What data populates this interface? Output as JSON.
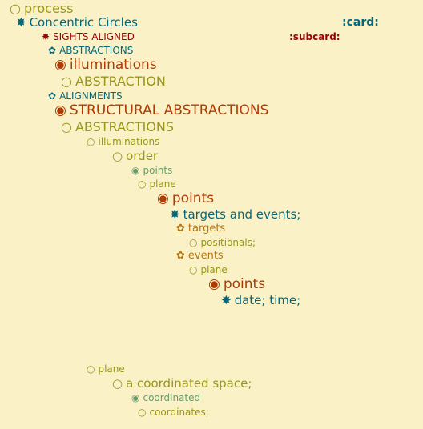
{
  "colors": {
    "background": "#fbf1c7",
    "olive": "#98971a",
    "teal": "#076678",
    "red": "#9d0006",
    "rust": "#af3a03",
    "gold": "#b57614",
    "green": "#689d6a"
  },
  "tags": {
    "card": ":card:",
    "subcard": ":subcard:"
  },
  "outline": [
    {
      "bullet": "○",
      "text": "process",
      "icon": "circle-outline-icon"
    },
    {
      "bullet": "✸",
      "text": "Concentric Circles",
      "icon": "star-burst-icon"
    },
    {
      "bullet": "✸",
      "text": "SIGHTS ALIGNED",
      "icon": "star-burst-icon"
    },
    {
      "bullet": "✿",
      "text": "ABSTRACTIONS",
      "icon": "flower-icon"
    },
    {
      "bullet": "◉",
      "text": "illuminations",
      "icon": "circle-filled-icon"
    },
    {
      "bullet": "○",
      "text": "ABSTRACTION",
      "icon": "circle-outline-icon"
    },
    {
      "bullet": "✿",
      "text": "ALIGNMENTS",
      "icon": "flower-icon"
    },
    {
      "bullet": "◉",
      "text": "STRUCTURAL ABSTRACTIONS",
      "icon": "circle-filled-icon"
    },
    {
      "bullet": "○",
      "text": "ABSTRACTIONS",
      "icon": "circle-outline-icon"
    },
    {
      "bullet": "○",
      "text": "illuminations",
      "icon": "circle-outline-icon"
    },
    {
      "bullet": "○",
      "text": "order",
      "icon": "circle-outline-icon"
    },
    {
      "bullet": "◉",
      "text": "points",
      "icon": "circle-filled-icon"
    },
    {
      "bullet": "○",
      "text": "plane",
      "icon": "circle-outline-icon"
    },
    {
      "bullet": "◉",
      "text": "points",
      "icon": "circle-filled-icon"
    },
    {
      "bullet": "✸",
      "text": "targets and events;",
      "icon": "star-burst-icon"
    },
    {
      "bullet": "✿",
      "text": "targets",
      "icon": "flower-icon"
    },
    {
      "bullet": "○",
      "text": "positionals;",
      "icon": "circle-outline-icon"
    },
    {
      "bullet": "✿",
      "text": "events",
      "icon": "flower-icon"
    },
    {
      "bullet": "○",
      "text": "plane",
      "icon": "circle-outline-icon"
    },
    {
      "bullet": "◉",
      "text": "points",
      "icon": "circle-filled-icon"
    },
    {
      "bullet": "✸",
      "text": "date; time;",
      "icon": "star-burst-icon"
    },
    {
      "bullet": "○",
      "text": "plane",
      "icon": "circle-outline-icon"
    },
    {
      "bullet": "○",
      "text": "a coordinated space;",
      "icon": "circle-outline-icon"
    },
    {
      "bullet": "◉",
      "text": "coordinated",
      "icon": "circle-filled-icon"
    },
    {
      "bullet": "○",
      "text": "coordinates;",
      "icon": "circle-outline-icon"
    }
  ]
}
